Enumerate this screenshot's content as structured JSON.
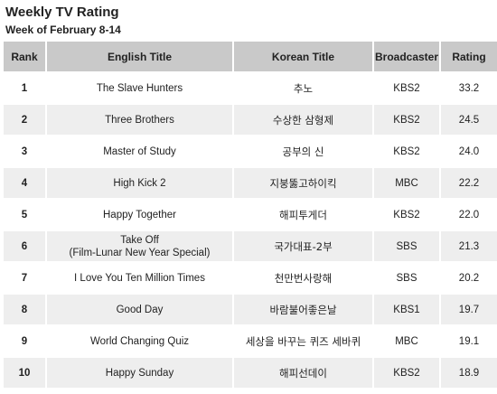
{
  "title": "Weekly TV Rating",
  "subtitle": "Week of February 8-14",
  "headers": {
    "rank": "Rank",
    "english": "English Title",
    "korean": "Korean Title",
    "broadcaster": "Broadcaster",
    "rating": "Rating"
  },
  "rows": [
    {
      "rank": "1",
      "english": "The Slave Hunters",
      "english2": "",
      "korean": "추노",
      "broadcaster": "KBS2",
      "rating": "33.2"
    },
    {
      "rank": "2",
      "english": "Three Brothers",
      "english2": "",
      "korean": "수상한 삼형제",
      "broadcaster": "KBS2",
      "rating": "24.5"
    },
    {
      "rank": "3",
      "english": "Master of Study",
      "english2": "",
      "korean": "공부의 신",
      "broadcaster": "KBS2",
      "rating": "24.0"
    },
    {
      "rank": "4",
      "english": "High Kick 2",
      "english2": "",
      "korean": "지붕뚫고하이킥",
      "broadcaster": "MBC",
      "rating": "22.2"
    },
    {
      "rank": "5",
      "english": "Happy Together",
      "english2": "",
      "korean": "해피투게더",
      "broadcaster": "KBS2",
      "rating": "22.0"
    },
    {
      "rank": "6",
      "english": "Take Off",
      "english2": "(Film-Lunar New Year Special)",
      "korean": "국가대표-2부",
      "broadcaster": "SBS",
      "rating": "21.3"
    },
    {
      "rank": "7",
      "english": "I Love You Ten Million Times",
      "english2": "",
      "korean": "천만번사랑해",
      "broadcaster": "SBS",
      "rating": "20.2"
    },
    {
      "rank": "8",
      "english": "Good Day",
      "english2": "",
      "korean": "바람불어좋은날",
      "broadcaster": "KBS1",
      "rating": "19.7"
    },
    {
      "rank": "9",
      "english": "World Changing Quiz",
      "english2": "",
      "korean": "세상을 바꾸는 퀴즈 세바퀴",
      "broadcaster": "MBC",
      "rating": "19.1"
    },
    {
      "rank": "10",
      "english": "Happy Sunday",
      "english2": "",
      "korean": "해피선데이",
      "broadcaster": "KBS2",
      "rating": "18.9"
    }
  ]
}
